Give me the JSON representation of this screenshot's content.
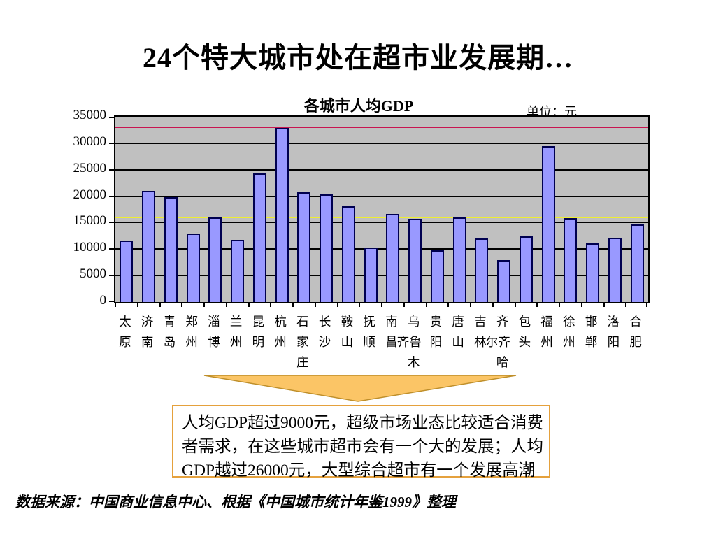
{
  "slide": {
    "title": "24个特大城市处在超市业发展期…",
    "source": "数据来源：中国商业信息中心、根据《中国城市统计年鉴1999》整理"
  },
  "note": {
    "border_color": "#e5a13d",
    "lines": [
      "人均GDP超过9000元，超级市场业态比较适合消费",
      "者需求，在这些城市超市会有一个大的发展；人均",
      "GDP越过26000元，大型综合超市有一个发展高潮"
    ]
  },
  "arrow": {
    "fill": "#fbc566",
    "stroke": "#bf8f2a"
  },
  "chart_data": {
    "type": "bar",
    "title": "各城市人均GDP",
    "unit_label": "单位：元",
    "xlabel": "",
    "ylabel": "",
    "ylim": [
      0,
      35000
    ],
    "ytick_step": 5000,
    "yticks": [
      "35000",
      "30000",
      "25000",
      "20000",
      "15000",
      "10000",
      "5000",
      "0"
    ],
    "grid": true,
    "plot_bg": "#c0c0c0",
    "grid_color": "#000000",
    "bar_fill": "#9999ff",
    "bar_border": "#000050",
    "categories": [
      "太原",
      "济南",
      "青岛",
      "郑州",
      "淄博",
      "兰州",
      "昆明",
      "杭州",
      "石家庄",
      "长沙",
      "鞍山",
      "抚顺",
      "南昌",
      "乌鲁木齐",
      "贵阳",
      "唐山",
      "吉林",
      "齐齐哈尔",
      "包头",
      "福州",
      "徐州",
      "邯郸",
      "洛阳",
      "合肥"
    ],
    "values": [
      11600,
      21000,
      19800,
      13000,
      16000,
      11800,
      24300,
      32900,
      20700,
      20300,
      18100,
      10300,
      16700,
      15700,
      9800,
      16000,
      12000,
      7900,
      12400,
      29400,
      15900,
      11100,
      12200,
      14700
    ],
    "x_label_rows": [
      [
        "太",
        "原"
      ],
      [
        "济",
        "南"
      ],
      [
        "青",
        "岛"
      ],
      [
        "郑",
        "州"
      ],
      [
        "淄",
        "博"
      ],
      [
        "兰",
        "州"
      ],
      [
        "昆",
        "明"
      ],
      [
        "杭",
        "州"
      ],
      [
        "石",
        "家",
        "庄"
      ],
      [
        "长",
        "沙"
      ],
      [
        "鞍",
        "山"
      ],
      [
        "抚",
        "顺"
      ],
      [
        "南",
        "昌"
      ],
      [
        "乌",
        "齐鲁",
        "木"
      ],
      [
        "贵",
        "阳"
      ],
      [
        "唐",
        "山"
      ],
      [
        "吉",
        "林"
      ],
      [
        "齐",
        "尔齐",
        "哈"
      ],
      [
        "包",
        "头"
      ],
      [
        "福",
        "州"
      ],
      [
        "徐",
        "州"
      ],
      [
        "邯",
        "郸"
      ],
      [
        "洛",
        "阳"
      ],
      [
        "合",
        "肥"
      ]
    ],
    "ref_lines": [
      {
        "name": "red-threshold-line",
        "value": 33000,
        "color": "#c81450"
      },
      {
        "name": "yellow-threshold-line",
        "value": 16000,
        "color": "#eeee33"
      }
    ]
  }
}
